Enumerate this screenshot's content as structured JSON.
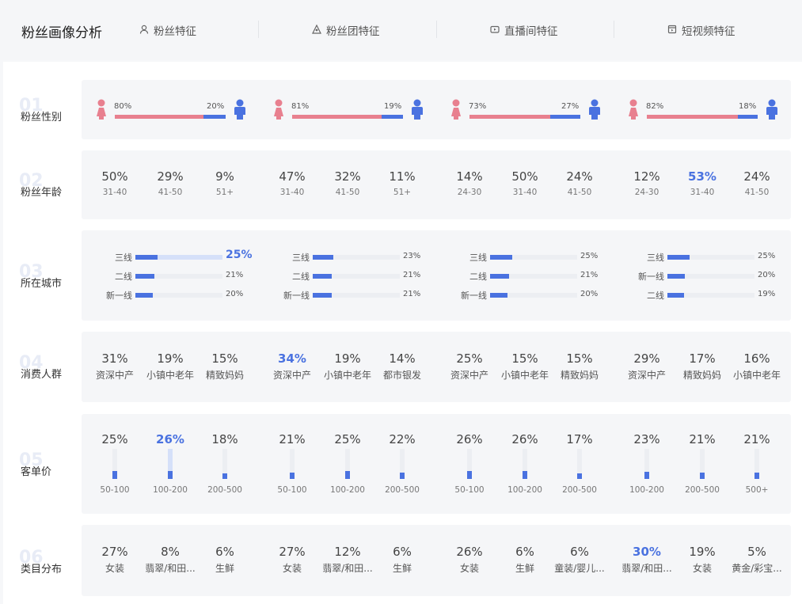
{
  "header": {
    "title": "粉丝画像分析",
    "tabs": [
      {
        "label": "粉丝特征",
        "icon": "user-icon"
      },
      {
        "label": "粉丝团特征",
        "icon": "group-icon"
      },
      {
        "label": "直播间特征",
        "icon": "live-icon"
      },
      {
        "label": "短视频特征",
        "icon": "video-icon"
      }
    ]
  },
  "rows": {
    "gender": {
      "num": "01",
      "label": "粉丝性别"
    },
    "age": {
      "num": "02",
      "label": "粉丝年龄"
    },
    "city": {
      "num": "03",
      "label": "所在城市"
    },
    "consumer": {
      "num": "04",
      "label": "消费人群"
    },
    "price": {
      "num": "05",
      "label": "客单价"
    },
    "category": {
      "num": "06",
      "label": "类目分布"
    }
  },
  "colors": {
    "female": "#e8808f",
    "male": "#4a72e0",
    "accent": "#4a72e0"
  },
  "gender": [
    {
      "female": "80%",
      "male": "20%",
      "female_ratio": 0.8
    },
    {
      "female": "81%",
      "male": "19%",
      "female_ratio": 0.81
    },
    {
      "female": "73%",
      "male": "27%",
      "female_ratio": 0.73
    },
    {
      "female": "82%",
      "male": "18%",
      "female_ratio": 0.82
    }
  ],
  "age": [
    [
      {
        "pct": "50%",
        "label": "31-40"
      },
      {
        "pct": "29%",
        "label": "41-50"
      },
      {
        "pct": "9%",
        "label": "51+"
      }
    ],
    [
      {
        "pct": "47%",
        "label": "31-40"
      },
      {
        "pct": "32%",
        "label": "41-50"
      },
      {
        "pct": "11%",
        "label": "51+"
      }
    ],
    [
      {
        "pct": "14%",
        "label": "24-30"
      },
      {
        "pct": "50%",
        "label": "31-40"
      },
      {
        "pct": "24%",
        "label": "41-50"
      }
    ],
    [
      {
        "pct": "12%",
        "label": "24-30"
      },
      {
        "pct": "53%",
        "label": "31-40",
        "hl": true
      },
      {
        "pct": "24%",
        "label": "41-50"
      }
    ]
  ],
  "city": [
    [
      {
        "label": "三线",
        "pct": "25%",
        "value": 25,
        "hl": true
      },
      {
        "label": "二线",
        "pct": "21%",
        "value": 21
      },
      {
        "label": "新一线",
        "pct": "20%",
        "value": 20
      }
    ],
    [
      {
        "label": "三线",
        "pct": "23%",
        "value": 23
      },
      {
        "label": "二线",
        "pct": "21%",
        "value": 21
      },
      {
        "label": "新一线",
        "pct": "21%",
        "value": 21
      }
    ],
    [
      {
        "label": "三线",
        "pct": "25%",
        "value": 25
      },
      {
        "label": "二线",
        "pct": "21%",
        "value": 21
      },
      {
        "label": "新一线",
        "pct": "20%",
        "value": 20
      }
    ],
    [
      {
        "label": "三线",
        "pct": "25%",
        "value": 25
      },
      {
        "label": "新一线",
        "pct": "20%",
        "value": 20
      },
      {
        "label": "二线",
        "pct": "19%",
        "value": 19
      }
    ]
  ],
  "consumer": [
    [
      {
        "pct": "31%",
        "label": "资深中产"
      },
      {
        "pct": "19%",
        "label": "小镇中老年"
      },
      {
        "pct": "15%",
        "label": "精致妈妈"
      }
    ],
    [
      {
        "pct": "34%",
        "label": "资深中产",
        "hl": true
      },
      {
        "pct": "19%",
        "label": "小镇中老年"
      },
      {
        "pct": "14%",
        "label": "都市银发"
      }
    ],
    [
      {
        "pct": "25%",
        "label": "资深中产"
      },
      {
        "pct": "15%",
        "label": "小镇中老年"
      },
      {
        "pct": "15%",
        "label": "精致妈妈"
      }
    ],
    [
      {
        "pct": "29%",
        "label": "资深中产"
      },
      {
        "pct": "17%",
        "label": "精致妈妈"
      },
      {
        "pct": "16%",
        "label": "小镇中老年"
      }
    ]
  ],
  "price": [
    [
      {
        "pct": "25%",
        "label": "50-100",
        "value": 25
      },
      {
        "pct": "26%",
        "label": "100-200",
        "value": 26,
        "hl": true
      },
      {
        "pct": "18%",
        "label": "200-500",
        "value": 18
      }
    ],
    [
      {
        "pct": "21%",
        "label": "50-100",
        "value": 21
      },
      {
        "pct": "25%",
        "label": "100-200",
        "value": 25
      },
      {
        "pct": "22%",
        "label": "200-500",
        "value": 22
      }
    ],
    [
      {
        "pct": "26%",
        "label": "50-100",
        "value": 26
      },
      {
        "pct": "26%",
        "label": "100-200",
        "value": 26
      },
      {
        "pct": "17%",
        "label": "200-500",
        "value": 17
      }
    ],
    [
      {
        "pct": "23%",
        "label": "100-200",
        "value": 23
      },
      {
        "pct": "21%",
        "label": "200-500",
        "value": 21
      },
      {
        "pct": "21%",
        "label": "500+",
        "value": 21
      }
    ]
  ],
  "category": [
    [
      {
        "pct": "27%",
        "label": "女装"
      },
      {
        "pct": "8%",
        "label": "翡翠/和田..."
      },
      {
        "pct": "6%",
        "label": "生鲜"
      }
    ],
    [
      {
        "pct": "27%",
        "label": "女装"
      },
      {
        "pct": "12%",
        "label": "翡翠/和田..."
      },
      {
        "pct": "6%",
        "label": "生鲜"
      }
    ],
    [
      {
        "pct": "26%",
        "label": "女装"
      },
      {
        "pct": "6%",
        "label": "生鲜"
      },
      {
        "pct": "6%",
        "label": "童装/婴儿..."
      }
    ],
    [
      {
        "pct": "30%",
        "label": "翡翠/和田...",
        "hl": true
      },
      {
        "pct": "19%",
        "label": "女装"
      },
      {
        "pct": "5%",
        "label": "黄金/彩宝..."
      }
    ]
  ]
}
